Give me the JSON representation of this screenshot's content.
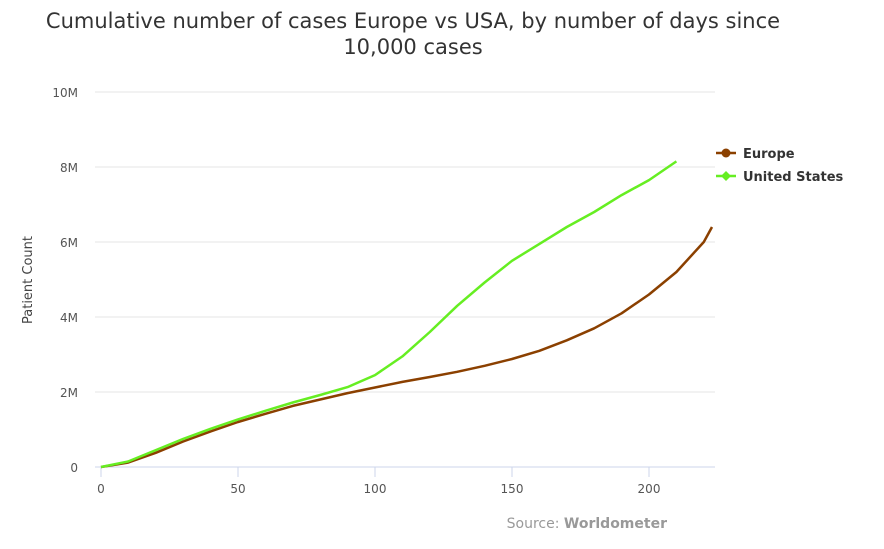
{
  "chart_data": {
    "type": "line",
    "title_line1": "Cumulative number of cases Europe vs USA, by number of days since",
    "title_line2": "10,000 cases",
    "ylabel": "Patient Count",
    "xlabel": "",
    "xlim": [
      0,
      225
    ],
    "ylim": [
      0,
      10000000
    ],
    "x_ticks": [
      0,
      50,
      100,
      150,
      200
    ],
    "y_ticks": [
      {
        "v": 0,
        "label": "0"
      },
      {
        "v": 2000000,
        "label": "2M"
      },
      {
        "v": 4000000,
        "label": "4M"
      },
      {
        "v": 6000000,
        "label": "6M"
      },
      {
        "v": 8000000,
        "label": "8M"
      },
      {
        "v": 10000000,
        "label": "10M"
      }
    ],
    "grid": true,
    "legend_placement": "right",
    "series": [
      {
        "name": "Europe",
        "color": "#8B4000",
        "marker": "circle",
        "x": [
          0,
          10,
          20,
          30,
          40,
          50,
          60,
          70,
          80,
          90,
          100,
          110,
          120,
          130,
          140,
          150,
          160,
          170,
          180,
          190,
          200,
          210,
          220,
          223
        ],
        "values": [
          0,
          120000,
          380000,
          680000,
          950000,
          1200000,
          1420000,
          1630000,
          1800000,
          1970000,
          2120000,
          2270000,
          2400000,
          2540000,
          2700000,
          2880000,
          3100000,
          3380000,
          3700000,
          4100000,
          4600000,
          5200000,
          6000000,
          6400000
        ]
      },
      {
        "name": "United States",
        "color": "#66EE22",
        "marker": "diamond",
        "x": [
          0,
          10,
          20,
          30,
          40,
          50,
          60,
          70,
          80,
          90,
          100,
          110,
          120,
          130,
          140,
          150,
          160,
          170,
          180,
          190,
          200,
          210
        ],
        "values": [
          0,
          150000,
          450000,
          750000,
          1020000,
          1270000,
          1500000,
          1720000,
          1920000,
          2130000,
          2450000,
          2950000,
          3600000,
          4300000,
          4920000,
          5500000,
          5950000,
          6400000,
          6800000,
          7250000,
          7650000,
          8150000
        ]
      }
    ],
    "source_prefix": "Source: ",
    "source_name": "Worldometer"
  }
}
